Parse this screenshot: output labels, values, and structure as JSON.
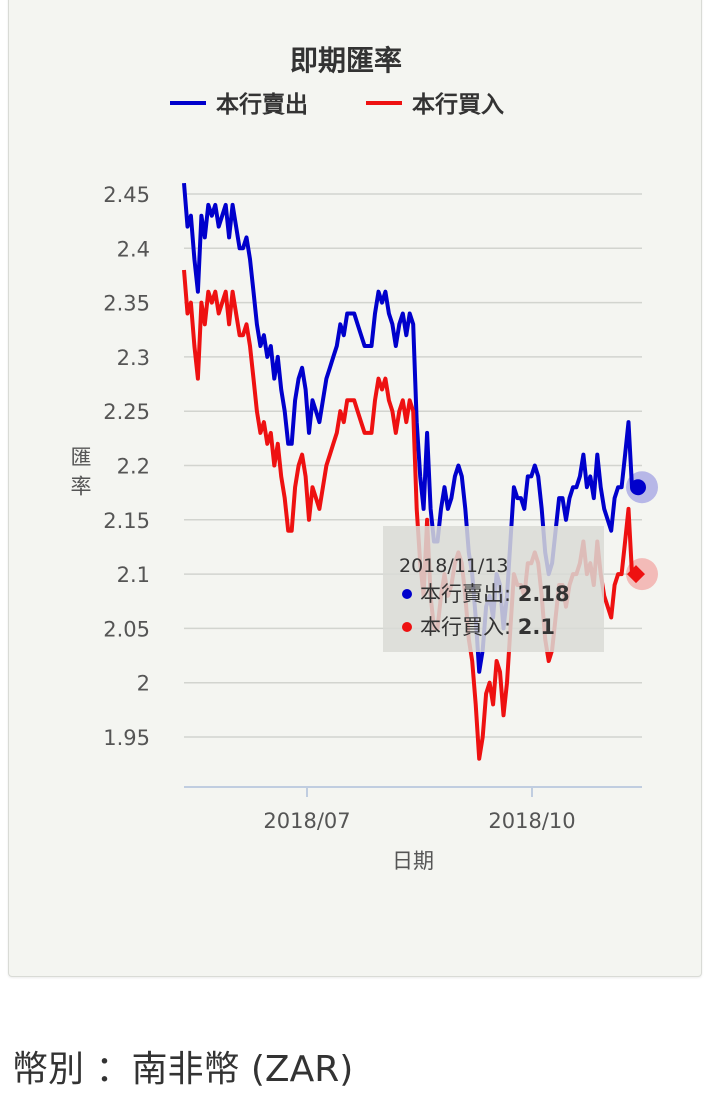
{
  "chart_data": {
    "type": "line",
    "title": "即期匯率",
    "xlabel": "日期",
    "ylabel": "匯率",
    "ylim": [
      1.9,
      2.47
    ],
    "yticks": [
      "2.45",
      "2.4",
      "2.35",
      "2.3",
      "2.25",
      "2.2",
      "2.15",
      "2.1",
      "2.05",
      "2",
      "1.95"
    ],
    "xticks": [
      "2018/07",
      "2018/10"
    ],
    "legend_position": "top",
    "series": [
      {
        "name": "本行賣出",
        "color": "#0000cc",
        "values": [
          2.46,
          2.42,
          2.43,
          2.39,
          2.36,
          2.43,
          2.41,
          2.44,
          2.43,
          2.44,
          2.42,
          2.43,
          2.44,
          2.41,
          2.44,
          2.42,
          2.4,
          2.4,
          2.41,
          2.39,
          2.36,
          2.33,
          2.31,
          2.32,
          2.3,
          2.31,
          2.28,
          2.3,
          2.27,
          2.25,
          2.22,
          2.22,
          2.26,
          2.28,
          2.29,
          2.27,
          2.23,
          2.26,
          2.25,
          2.24,
          2.26,
          2.28,
          2.29,
          2.3,
          2.31,
          2.33,
          2.32,
          2.34,
          2.34,
          2.34,
          2.33,
          2.32,
          2.31,
          2.31,
          2.31,
          2.34,
          2.36,
          2.35,
          2.36,
          2.34,
          2.33,
          2.31,
          2.33,
          2.34,
          2.32,
          2.34,
          2.33,
          2.24,
          2.19,
          2.16,
          2.23,
          2.16,
          2.13,
          2.13,
          2.16,
          2.18,
          2.16,
          2.17,
          2.19,
          2.2,
          2.19,
          2.16,
          2.12,
          2.1,
          2.06,
          2.01,
          2.03,
          2.07,
          2.08,
          2.06,
          2.1,
          2.09,
          2.05,
          2.08,
          2.13,
          2.18,
          2.17,
          2.17,
          2.16,
          2.19,
          2.19,
          2.2,
          2.19,
          2.16,
          2.12,
          2.1,
          2.11,
          2.14,
          2.17,
          2.17,
          2.15,
          2.17,
          2.18,
          2.18,
          2.19,
          2.21,
          2.18,
          2.19,
          2.17,
          2.21,
          2.18,
          2.16,
          2.15,
          2.14,
          2.17,
          2.18,
          2.18,
          2.21,
          2.24,
          2.18
        ]
      },
      {
        "name": "本行買入",
        "color": "#ee1111",
        "values": [
          2.38,
          2.34,
          2.35,
          2.31,
          2.28,
          2.35,
          2.33,
          2.36,
          2.35,
          2.36,
          2.34,
          2.35,
          2.36,
          2.33,
          2.36,
          2.34,
          2.32,
          2.32,
          2.33,
          2.31,
          2.28,
          2.25,
          2.23,
          2.24,
          2.22,
          2.23,
          2.2,
          2.22,
          2.19,
          2.17,
          2.14,
          2.14,
          2.18,
          2.2,
          2.21,
          2.19,
          2.15,
          2.18,
          2.17,
          2.16,
          2.18,
          2.2,
          2.21,
          2.22,
          2.23,
          2.25,
          2.24,
          2.26,
          2.26,
          2.26,
          2.25,
          2.24,
          2.23,
          2.23,
          2.23,
          2.26,
          2.28,
          2.27,
          2.28,
          2.26,
          2.25,
          2.23,
          2.25,
          2.26,
          2.24,
          2.26,
          2.25,
          2.16,
          2.11,
          2.08,
          2.15,
          2.08,
          2.05,
          2.05,
          2.08,
          2.1,
          2.08,
          2.09,
          2.11,
          2.12,
          2.11,
          2.08,
          2.04,
          2.02,
          1.98,
          1.93,
          1.95,
          1.99,
          2.0,
          1.98,
          2.02,
          2.01,
          1.97,
          2.0,
          2.05,
          2.1,
          2.09,
          2.09,
          2.08,
          2.11,
          2.11,
          2.12,
          2.11,
          2.08,
          2.04,
          2.02,
          2.03,
          2.06,
          2.09,
          2.09,
          2.07,
          2.09,
          2.1,
          2.1,
          2.11,
          2.13,
          2.1,
          2.11,
          2.09,
          2.13,
          2.1,
          2.08,
          2.07,
          2.06,
          2.09,
          2.1,
          2.1,
          2.13,
          2.16,
          2.1
        ]
      }
    ],
    "tooltip": {
      "date": "2018/11/13",
      "rows": [
        {
          "label": "本行賣出: ",
          "value": "2.18",
          "color": "#0000cc"
        },
        {
          "label": "本行買入: ",
          "value": "2.1",
          "color": "#ee1111"
        }
      ]
    }
  },
  "footer": {
    "currency_label": "幣別 ：南非幣 (ZAR)"
  }
}
